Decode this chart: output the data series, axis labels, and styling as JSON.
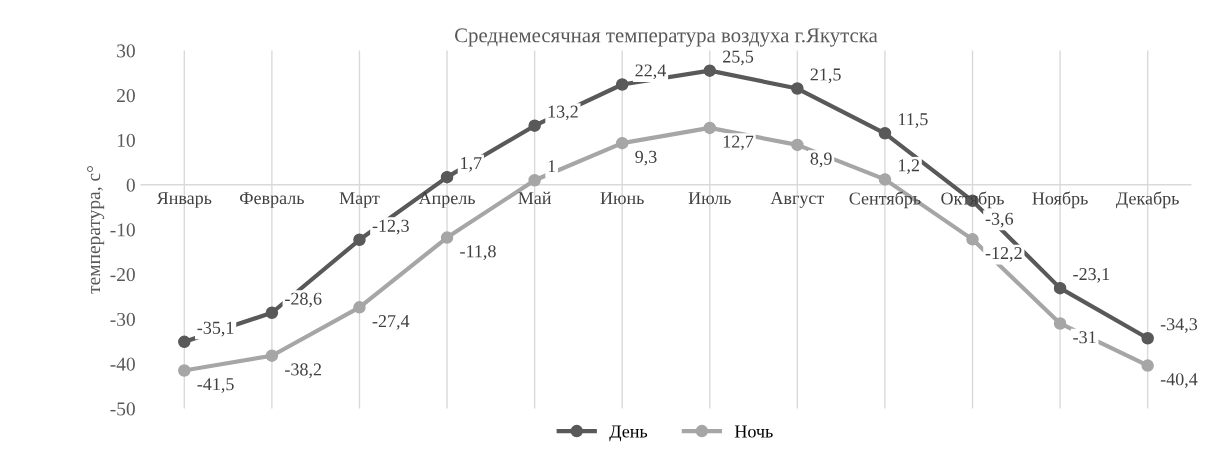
{
  "chart_data": {
    "type": "line",
    "title": "Среднемесячная температура воздуха г.Якутска",
    "ylabel": "температура, с°",
    "categories": [
      "Январь",
      "Февраль",
      "Март",
      "Апрель",
      "Май",
      "Июнь",
      "Июль",
      "Август",
      "Сентябрь",
      "Октябрь",
      "Ноябрь",
      "Декабрь"
    ],
    "series": [
      {
        "name": "День",
        "color": "#595959",
        "values": [
          -35.1,
          -28.6,
          -12.3,
          1.7,
          13.2,
          22.4,
          25.5,
          21.5,
          11.5,
          -3.6,
          -23.1,
          -34.3
        ],
        "value_labels": [
          "-35,1",
          "-28,6",
          "-12,3",
          "1,7",
          "13,2",
          "22,4",
          "25,5",
          "21,5",
          "11,5",
          "-3,6",
          "-23,1",
          "-34,3"
        ]
      },
      {
        "name": "Ночь",
        "color": "#a6a6a6",
        "values": [
          -41.5,
          -38.2,
          -27.4,
          -11.8,
          1,
          9.3,
          12.7,
          8.9,
          1.2,
          -12.2,
          -31,
          -40.4
        ],
        "value_labels": [
          "-41,5",
          "-38,2",
          "-27,4",
          "-11,8",
          "1",
          "9,3",
          "12,7",
          "8,9",
          "1,2",
          "-12,2",
          "-31",
          "-40,4"
        ]
      }
    ],
    "ylim": [
      -50,
      30
    ],
    "yticks": [
      -50,
      -40,
      -30,
      -20,
      -10,
      0,
      10,
      20,
      30
    ],
    "grid": "x",
    "legend": "bottom",
    "marker": "circle",
    "line_style": "solid"
  }
}
